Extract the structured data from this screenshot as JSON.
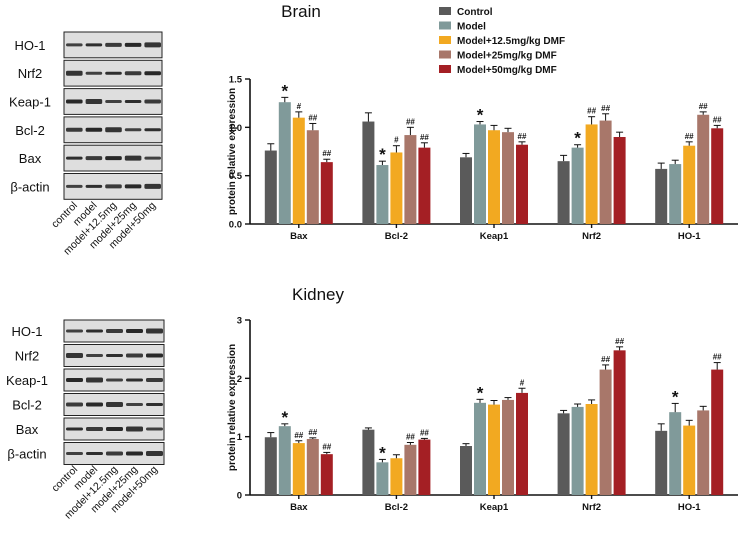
{
  "colors": {
    "control": "#5a5a5a",
    "model": "#809a9a",
    "dose_12_5": "#f2a921",
    "dose_25": "#a8776a",
    "dose_50": "#a41f24",
    "band": "#1d1d1d",
    "blot_bg": "#dedede"
  },
  "legend": {
    "items": [
      "Control",
      "Model",
      "Model+12.5mg/kg DMF",
      "Model+25mg/kg DMF",
      "Model+50mg/kg DMF"
    ],
    "placement": "top-right"
  },
  "blots": [
    {
      "panel": "brain",
      "proteins": [
        "HO-1",
        "Nrf2",
        "Keap-1",
        "Bcl-2",
        "Bax",
        "β-actin"
      ],
      "lanes": [
        "control",
        "model",
        "model+12.5mg",
        "model+25mg",
        "model+50mg"
      ]
    },
    {
      "panel": "kidney",
      "proteins": [
        "HO-1",
        "Nrf2",
        "Keap-1",
        "Bcl-2",
        "Bax",
        "β-actin"
      ],
      "lanes": [
        "control",
        "model",
        "model+12.5mg",
        "model+25mg",
        "model+50mg"
      ]
    }
  ],
  "chart_data": [
    {
      "type": "bar",
      "title": "Brain",
      "xlabel": "",
      "ylabel": "protein relative expression",
      "ylim": [
        0,
        1.5
      ],
      "yticks": [
        "0.0",
        "0.5",
        "1.0",
        "1.5"
      ],
      "grid": false,
      "categories": [
        "Bax",
        "Bcl-2",
        "Keap1",
        "Nrf2",
        "HO-1"
      ],
      "series": [
        {
          "name": "Control",
          "values": [
            0.76,
            1.06,
            0.69,
            0.65,
            0.57
          ],
          "errors": [
            0.07,
            0.09,
            0.04,
            0.06,
            0.06
          ],
          "marks": [
            "",
            "",
            "",
            "",
            ""
          ]
        },
        {
          "name": "Model",
          "values": [
            1.26,
            0.61,
            1.03,
            0.79,
            0.62
          ],
          "errors": [
            0.05,
            0.04,
            0.03,
            0.03,
            0.04
          ],
          "marks": [
            "*",
            "*",
            "*",
            "*",
            ""
          ]
        },
        {
          "name": "Model+12.5mg/kg DMF",
          "values": [
            1.1,
            0.74,
            0.97,
            1.03,
            0.81
          ],
          "errors": [
            0.06,
            0.07,
            0.05,
            0.08,
            0.04
          ],
          "marks": [
            "#",
            "#",
            "",
            "##",
            "##"
          ]
        },
        {
          "name": "Model+25mg/kg DMF",
          "values": [
            0.97,
            0.92,
            0.95,
            1.07,
            1.13
          ],
          "errors": [
            0.07,
            0.08,
            0.04,
            0.07,
            0.03
          ],
          "marks": [
            "##",
            "##",
            "",
            "##",
            "##"
          ]
        },
        {
          "name": "Model+50mg/kg DMF",
          "values": [
            0.64,
            0.79,
            0.82,
            0.9,
            0.99
          ],
          "errors": [
            0.03,
            0.05,
            0.03,
            0.05,
            0.03
          ],
          "marks": [
            "##",
            "##",
            "##",
            "",
            "##"
          ]
        }
      ]
    },
    {
      "type": "bar",
      "title": "Kidney",
      "xlabel": "",
      "ylabel": "protein relative expression",
      "ylim": [
        0,
        3
      ],
      "yticks": [
        "0",
        "1",
        "2",
        "3"
      ],
      "grid": false,
      "categories": [
        "Bax",
        "Bcl-2",
        "Keap1",
        "Nrf2",
        "HO-1"
      ],
      "series": [
        {
          "name": "Control",
          "values": [
            0.99,
            1.12,
            0.84,
            1.4,
            1.1
          ],
          "errors": [
            0.08,
            0.03,
            0.04,
            0.05,
            0.12
          ],
          "marks": [
            "",
            "",
            "",
            "",
            ""
          ]
        },
        {
          "name": "Model",
          "values": [
            1.18,
            0.56,
            1.58,
            1.51,
            1.42
          ],
          "errors": [
            0.04,
            0.05,
            0.06,
            0.05,
            0.15
          ],
          "marks": [
            "*",
            "*",
            "*",
            "",
            "*"
          ]
        },
        {
          "name": "Model+12.5mg/kg DMF",
          "values": [
            0.89,
            0.63,
            1.55,
            1.56,
            1.19
          ],
          "errors": [
            0.04,
            0.06,
            0.07,
            0.07,
            0.09
          ],
          "marks": [
            "##",
            "",
            "",
            "",
            ""
          ]
        },
        {
          "name": "Model+25mg/kg DMF",
          "values": [
            0.96,
            0.86,
            1.63,
            2.15,
            1.45
          ],
          "errors": [
            0.02,
            0.04,
            0.04,
            0.08,
            0.07
          ],
          "marks": [
            "##",
            "##",
            "",
            "##",
            ""
          ]
        },
        {
          "name": "Model+50mg/kg DMF",
          "values": [
            0.7,
            0.95,
            1.75,
            2.48,
            2.15
          ],
          "errors": [
            0.03,
            0.02,
            0.08,
            0.06,
            0.12
          ],
          "marks": [
            "##",
            "##",
            "#",
            "##",
            "##"
          ]
        }
      ]
    }
  ]
}
